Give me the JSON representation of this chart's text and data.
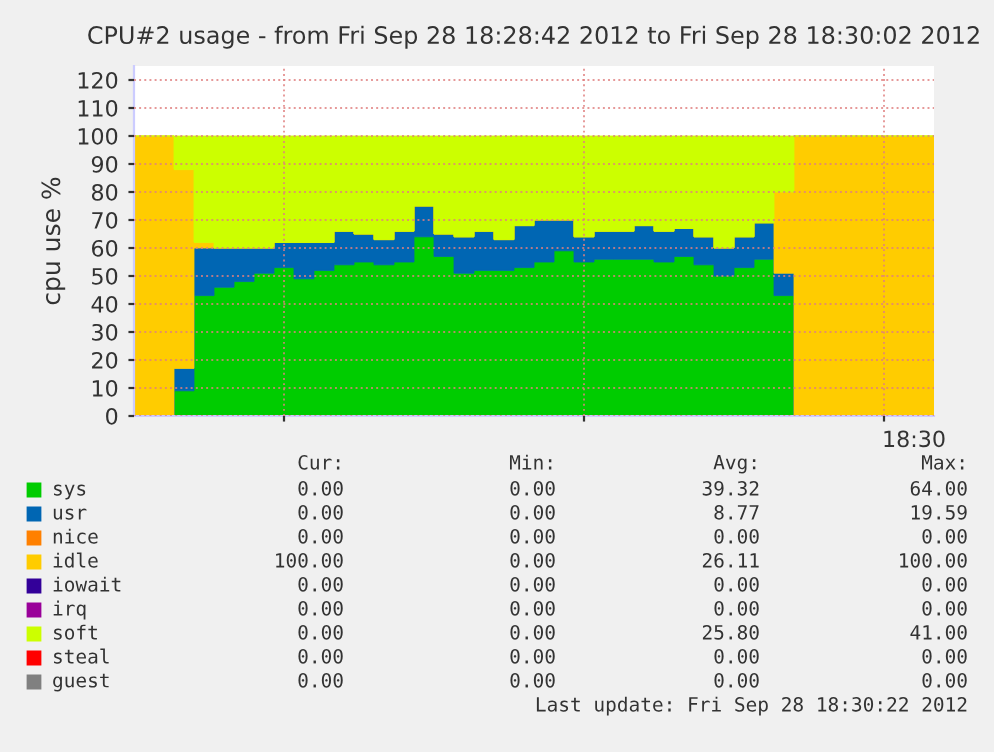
{
  "chart_data": {
    "type": "area",
    "stacked": true,
    "line_style": "solid",
    "title": "CPU#2 usage - from Fri Sep 28 18:28:42 2012 to Fri Sep 28 18:30:02 2012",
    "ylabel": "cpu use %",
    "categories": [
      null,
      null,
      null,
      null,
      null,
      null,
      null,
      null,
      null,
      null,
      null,
      null,
      null,
      null,
      null,
      null,
      null,
      null,
      null,
      null,
      null,
      null,
      null,
      null,
      null,
      null,
      null,
      null,
      null,
      null,
      null,
      null,
      null,
      null,
      null,
      null,
      null,
      null,
      null,
      null,
      null
    ],
    "ylim": [
      0,
      125
    ],
    "yticks": [
      0,
      10,
      20,
      30,
      40,
      50,
      60,
      70,
      80,
      90,
      100,
      110,
      120
    ],
    "grid": true,
    "legend": "bottom",
    "series": [
      {
        "name": "sys",
        "color": "#00cc00",
        "values": [
          0,
          0,
          9,
          43,
          46,
          48,
          51,
          53,
          49,
          52,
          54,
          55,
          54,
          55,
          64,
          57,
          51,
          52,
          52,
          53,
          55,
          59,
          55,
          56,
          56,
          56,
          55,
          57,
          54,
          50,
          53,
          56,
          43,
          0,
          0,
          0,
          0,
          0,
          0,
          0,
          0
        ]
      },
      {
        "name": "usr",
        "color": "#0066b3",
        "values": [
          0,
          0,
          8,
          17,
          14,
          12,
          9,
          9,
          13,
          10,
          12,
          10,
          9,
          11,
          11,
          8,
          13,
          14,
          11,
          15,
          15,
          11,
          9,
          10,
          10,
          12,
          11,
          10,
          10,
          10,
          11,
          13,
          8,
          0,
          0,
          0,
          0,
          0,
          0,
          0,
          0
        ]
      },
      {
        "name": "nice",
        "color": "#ff8000",
        "values": [
          null,
          null,
          null,
          null,
          null,
          null,
          null,
          null,
          null,
          null,
          null,
          null,
          null,
          null,
          null,
          null,
          null,
          null,
          null,
          null,
          null,
          null,
          null,
          null,
          null,
          null,
          null,
          null,
          null,
          null,
          null,
          null,
          null,
          null,
          null,
          null,
          null,
          null,
          null,
          null,
          null
        ]
      },
      {
        "name": "idle",
        "color": "#ffcc00",
        "values": [
          100,
          100,
          71,
          2,
          0,
          0,
          0,
          0,
          0,
          0,
          0,
          0,
          0,
          0,
          0,
          0,
          0,
          0,
          0,
          0,
          0,
          0,
          0,
          0,
          0,
          0,
          0,
          0,
          0,
          0,
          0,
          0,
          29,
          100,
          100,
          100,
          100,
          100,
          100,
          100,
          100
        ]
      },
      {
        "name": "iowait",
        "color": "#330099",
        "values": [
          null,
          null,
          null,
          null,
          null,
          null,
          null,
          null,
          null,
          null,
          null,
          null,
          null,
          null,
          null,
          null,
          null,
          null,
          null,
          null,
          null,
          null,
          null,
          null,
          null,
          null,
          null,
          null,
          null,
          null,
          null,
          null,
          null,
          null,
          null,
          null,
          null,
          null,
          null,
          null,
          null
        ]
      },
      {
        "name": "irq",
        "color": "#990099",
        "values": [
          null,
          null,
          null,
          null,
          null,
          null,
          null,
          null,
          null,
          null,
          null,
          null,
          null,
          null,
          null,
          null,
          null,
          null,
          null,
          null,
          null,
          null,
          null,
          null,
          null,
          null,
          null,
          null,
          null,
          null,
          null,
          null,
          null,
          null,
          null,
          null,
          null,
          null,
          null,
          null,
          null
        ]
      },
      {
        "name": "soft",
        "color": "#ccff00",
        "values": [
          0,
          0,
          12,
          38,
          40,
          40,
          40,
          38,
          38,
          38,
          34,
          35,
          37,
          34,
          25,
          35,
          36,
          34,
          37,
          32,
          30,
          30,
          36,
          34,
          34,
          32,
          34,
          33,
          36,
          40,
          36,
          31,
          20,
          0,
          0,
          0,
          0,
          0,
          0,
          0,
          0
        ]
      },
      {
        "name": "steal",
        "color": "#ff0000",
        "values": [
          null,
          null,
          null,
          null,
          null,
          null,
          null,
          null,
          null,
          null,
          null,
          null,
          null,
          null,
          null,
          null,
          null,
          null,
          null,
          null,
          null,
          null,
          null,
          null,
          null,
          null,
          null,
          null,
          null,
          null,
          null,
          null,
          null,
          null,
          null,
          null,
          null,
          null,
          null,
          null,
          null
        ]
      },
      {
        "name": "guest",
        "color": "#808080",
        "values": [
          null,
          null,
          null,
          null,
          null,
          null,
          null,
          null,
          null,
          null,
          null,
          null,
          null,
          null,
          null,
          null,
          null,
          null,
          null,
          null,
          null,
          null,
          null,
          null,
          null,
          null,
          null,
          null,
          null,
          null,
          null,
          null,
          null,
          null,
          null,
          null,
          null,
          null,
          null,
          null,
          null
        ]
      }
    ],
    "annotations": [
      "18:30",
      "Cur:",
      "Min:",
      "Avg:",
      "Max:",
      "0.00",
      "0.00",
      "39.32",
      "64.00",
      "0.00",
      "0.00",
      "8.77",
      "19.59",
      "0.00",
      "0.00",
      "0.00",
      "0.00",
      "100.00",
      "0.00",
      "26.11",
      "100.00",
      "0.00",
      "0.00",
      "0.00",
      "0.00",
      "0.00",
      "0.00",
      "0.00",
      "0.00",
      "0.00",
      "0.00",
      "25.80",
      "41.00",
      "0.00",
      "0.00",
      "0.00",
      "0.00",
      "0.00",
      "0.00",
      "0.00",
      "0.00",
      "Last update: Fri Sep 28 18:30:22 2012"
    ]
  }
}
